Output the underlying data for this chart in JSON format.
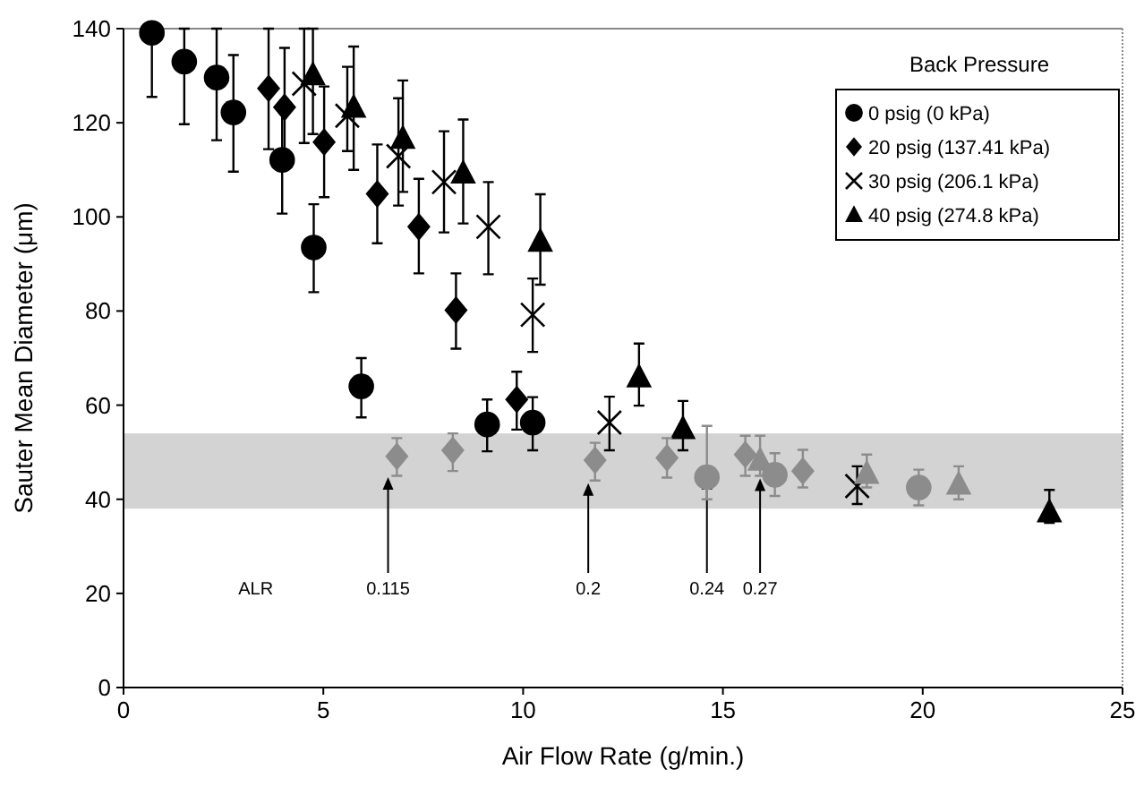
{
  "chart_data": {
    "type": "scatter",
    "xlabel": "Air Flow Rate (g/min.)",
    "ylabel": "Sauter Mean Diameter (μm)",
    "legend_title": "Back Pressure",
    "legend": "top right",
    "grid": false,
    "xlim": [
      0,
      25
    ],
    "xticks": [
      0,
      5,
      10,
      15,
      20,
      25
    ],
    "ylim": [
      0,
      140
    ],
    "yticks": [
      0,
      20,
      40,
      60,
      80,
      100,
      120,
      140
    ],
    "bands": [
      {
        "axis": "y",
        "from": 38,
        "to": 54,
        "color": "#c8c8c8"
      }
    ],
    "annotations": [
      "ALR",
      {
        "text": "0.115",
        "x": 6.62,
        "y": 44.7
      },
      {
        "text": "0.2",
        "x": 11.63,
        "y": 43.4
      },
      {
        "text": "0.24",
        "x": 14.6,
        "y": 44.7
      },
      {
        "text": "0.27",
        "x": 15.93,
        "y": 44.4
      }
    ],
    "series": [
      {
        "name": "0 psig (0 kPa)",
        "color": "#000000",
        "marker": "circle",
        "x": [
          0.71,
          1.52,
          2.33,
          2.75,
          3.97,
          4.76,
          5.95,
          9.1,
          10.24
        ],
        "values": [
          139.1,
          133,
          129.6,
          122.2,
          112.1,
          93.5,
          64,
          55.9,
          56.3
        ],
        "errors": [
          [
            125.5,
            139.1
          ],
          [
            119.7,
            140
          ],
          [
            116.3,
            140
          ],
          [
            109.6,
            134.4
          ],
          [
            100.7,
            123.5
          ],
          [
            84,
            102.7
          ],
          [
            57.4,
            70
          ],
          [
            50.2,
            61.2
          ],
          [
            50.4,
            61.7
          ]
        ]
      },
      {
        "name": "20 psig (137.41 kPa)",
        "color": "#000000",
        "marker": "diamond",
        "x": [
          3.63,
          4.03,
          5.02,
          6.35,
          7.39,
          8.32,
          9.84
        ],
        "values": [
          127.3,
          123.3,
          115.9,
          104.9,
          97.9,
          80.2,
          61.2
        ],
        "errors": [
          [
            114.4,
            140
          ],
          [
            110.7,
            135.9
          ],
          [
            104.2,
            127.7
          ],
          [
            94.4,
            115.4
          ],
          [
            88,
            108.1
          ],
          [
            72,
            88
          ],
          [
            54.8,
            67.1
          ]
        ]
      },
      {
        "name": "30 psig (206.1 kPa)",
        "color": "#000000",
        "marker": "cross",
        "x": [
          4.52,
          5.6,
          6.88,
          8.02,
          9.13,
          10.24,
          12.16,
          18.36
        ],
        "values": [
          128.3,
          121.5,
          112.9,
          107.4,
          97.9,
          79.2,
          56.3,
          42.8
        ],
        "errors": [
          [
            115.7,
            140
          ],
          [
            114,
            131.9
          ],
          [
            102.4,
            125.2
          ],
          [
            96.7,
            118.2
          ],
          [
            87.8,
            107.4
          ],
          [
            71.3,
            86.9
          ],
          [
            50.4,
            61.8
          ],
          [
            39,
            47
          ]
        ]
      },
      {
        "name": "40 psig (274.8 kPa)",
        "color": "#000000",
        "marker": "triangle",
        "x": [
          4.74,
          5.76,
          6.99,
          8.5,
          10.43,
          12.9,
          14.0,
          23.17
        ],
        "values": [
          130.2,
          123.3,
          116.7,
          109.3,
          94.8,
          66,
          55,
          37.3
        ],
        "errors": [
          [
            117.6,
            140
          ],
          [
            110,
            136.2
          ],
          [
            105.3,
            129
          ],
          [
            98.6,
            120.7
          ],
          [
            85.6,
            104.8
          ],
          [
            59.9,
            73.1
          ],
          [
            50.4,
            60.9
          ],
          [
            35,
            42
          ]
        ]
      },
      {
        "color": "#8c8c8c",
        "marker": "diamond",
        "x": [
          6.84,
          8.24,
          11.8,
          13.6,
          15.56,
          17.0
        ],
        "values": [
          49.1,
          50.4,
          48.3,
          48.8,
          49.5,
          46
        ],
        "errors": [
          [
            45,
            53
          ],
          [
            46,
            54
          ],
          [
            44,
            52
          ],
          [
            44.6,
            53
          ],
          [
            45,
            53.5
          ],
          [
            42.5,
            50.5
          ]
        ]
      },
      {
        "color": "#8c8c8c",
        "marker": "triangle",
        "x": [
          15.93,
          18.6,
          20.9
        ],
        "values": [
          48.3,
          45.5,
          43.2
        ],
        "errors": [
          [
            45,
            53.5
          ],
          [
            42.5,
            49.5
          ],
          [
            40,
            47
          ]
        ]
      },
      {
        "color": "#8c8c8c",
        "marker": "circle",
        "x": [
          14.6,
          16.3,
          19.9
        ],
        "values": [
          44.7,
          45.2,
          42.5
        ],
        "errors": [
          [
            40,
            55.6
          ],
          [
            40.7,
            49.8
          ],
          [
            38.7,
            46.3
          ]
        ]
      }
    ]
  }
}
